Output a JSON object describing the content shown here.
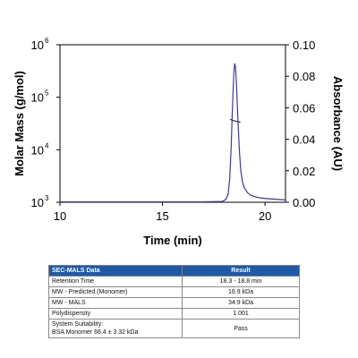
{
  "chart_data": {
    "type": "line",
    "xlabel": "Time (min)",
    "ylabel_left": "Molar Mass (g/mol)",
    "ylabel_right": "Absorbance (AU)",
    "xlim": [
      10,
      21
    ],
    "x_ticks": [
      "10",
      "15",
      "20"
    ],
    "y_left_scale": "log",
    "y_left_lim": [
      1000,
      1000000
    ],
    "y_left_ticks": [
      {
        "base": "10",
        "exp": "3"
      },
      {
        "base": "10",
        "exp": "4"
      },
      {
        "base": "10",
        "exp": "5"
      },
      {
        "base": "10",
        "exp": "6"
      }
    ],
    "y_right_lim": [
      0,
      0.1
    ],
    "y_right_ticks": [
      "0.00",
      "0.02",
      "0.04",
      "0.06",
      "0.08",
      "0.10"
    ],
    "grid": false,
    "series": [
      {
        "axis": "right",
        "color": "#3a3aa0",
        "x": [
          10,
          17,
          17.9,
          18.0,
          18.1,
          18.2,
          18.28,
          18.35,
          18.42,
          18.48,
          18.52,
          18.56,
          18.6,
          18.65,
          18.7,
          18.76,
          18.82,
          18.9,
          19.0,
          19.15,
          19.3,
          19.5,
          19.8,
          20.2,
          21
        ],
        "y": [
          0.0003,
          0.0003,
          0.0005,
          0.001,
          0.002,
          0.005,
          0.015,
          0.035,
          0.063,
          0.082,
          0.088,
          0.086,
          0.077,
          0.062,
          0.046,
          0.031,
          0.02,
          0.013,
          0.009,
          0.006,
          0.0045,
          0.0035,
          0.0027,
          0.0022,
          0.0015
        ]
      },
      {
        "axis": "left",
        "color": "#2a2a2a",
        "x": [
          18.3,
          18.45,
          18.6,
          18.8
        ],
        "y": [
          38000,
          36000,
          34900,
          33500
        ]
      }
    ]
  },
  "table": {
    "headers": [
      "SEC-MALS Data",
      "Result"
    ],
    "rows": [
      {
        "label": "Retention Time",
        "value": "18.3 - 18.8 min"
      },
      {
        "label": "MW - Predicted (Monomer)",
        "value": "16.9 kDa"
      },
      {
        "label": "MW - MALS",
        "value": "34.9 kDa"
      },
      {
        "label": "Polydispersity",
        "value": "1.001"
      },
      {
        "label": "System Suitability:",
        "label2": "BSA Monomer 66.4 ± 3.32 kDa",
        "value": "Pass"
      }
    ]
  }
}
